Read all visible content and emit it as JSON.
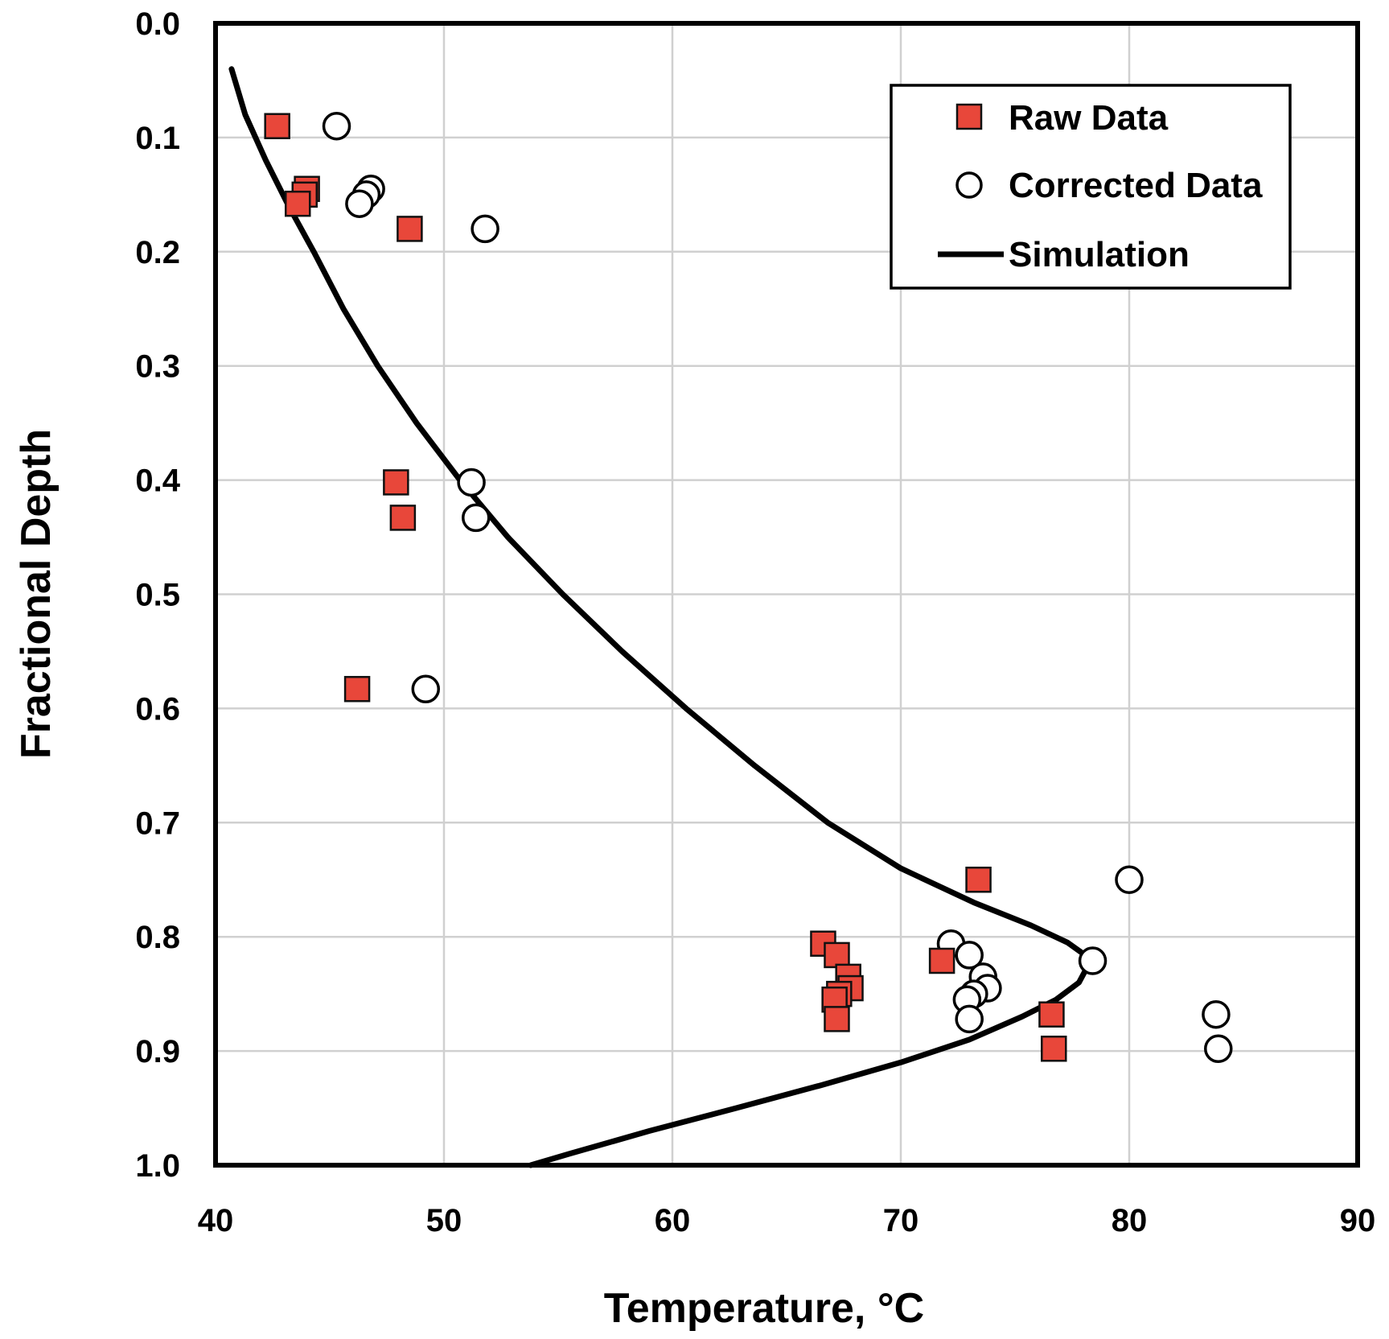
{
  "chart_data": {
    "type": "scatter",
    "title": "",
    "xlabel": "Temperature, °C",
    "ylabel": "Fractional Depth",
    "xlim": [
      40,
      90
    ],
    "ylim": [
      0.0,
      1.0
    ],
    "y_inverted": true,
    "grid": true,
    "legend_position": "top-right",
    "x_ticks": [
      "40",
      "50",
      "60",
      "70",
      "80",
      "90"
    ],
    "x_tick_values": [
      40,
      50,
      60,
      70,
      80,
      90
    ],
    "y_ticks": [
      "0.0",
      "0.1",
      "0.2",
      "0.3",
      "0.4",
      "0.5",
      "0.6",
      "0.7",
      "0.8",
      "0.9",
      "1.0"
    ],
    "y_tick_values": [
      0.0,
      0.1,
      0.2,
      0.3,
      0.4,
      0.5,
      0.6,
      0.7,
      0.8,
      0.9,
      1.0
    ],
    "series": [
      {
        "name": "Raw Data",
        "marker": "square",
        "color": "#e8473a",
        "points": [
          {
            "x": 42.7,
            "y": 0.09
          },
          {
            "x": 44.0,
            "y": 0.145
          },
          {
            "x": 43.9,
            "y": 0.15
          },
          {
            "x": 43.6,
            "y": 0.158
          },
          {
            "x": 48.5,
            "y": 0.18
          },
          {
            "x": 47.9,
            "y": 0.402
          },
          {
            "x": 48.2,
            "y": 0.433
          },
          {
            "x": 46.2,
            "y": 0.583
          },
          {
            "x": 73.4,
            "y": 0.75
          },
          {
            "x": 66.6,
            "y": 0.806
          },
          {
            "x": 67.2,
            "y": 0.816
          },
          {
            "x": 71.8,
            "y": 0.821
          },
          {
            "x": 67.7,
            "y": 0.835
          },
          {
            "x": 67.8,
            "y": 0.845
          },
          {
            "x": 67.3,
            "y": 0.85
          },
          {
            "x": 67.1,
            "y": 0.855
          },
          {
            "x": 67.2,
            "y": 0.872
          },
          {
            "x": 76.6,
            "y": 0.868
          },
          {
            "x": 76.7,
            "y": 0.898
          }
        ]
      },
      {
        "name": "Corrected Data",
        "marker": "circle",
        "color": "#ffffff",
        "points": [
          {
            "x": 45.3,
            "y": 0.09
          },
          {
            "x": 46.8,
            "y": 0.145
          },
          {
            "x": 46.6,
            "y": 0.15
          },
          {
            "x": 46.3,
            "y": 0.158
          },
          {
            "x": 51.8,
            "y": 0.18
          },
          {
            "x": 51.2,
            "y": 0.402
          },
          {
            "x": 51.4,
            "y": 0.433
          },
          {
            "x": 49.2,
            "y": 0.583
          },
          {
            "x": 80.0,
            "y": 0.75
          },
          {
            "x": 72.2,
            "y": 0.806
          },
          {
            "x": 73.0,
            "y": 0.816
          },
          {
            "x": 78.4,
            "y": 0.821
          },
          {
            "x": 73.6,
            "y": 0.835
          },
          {
            "x": 73.8,
            "y": 0.845
          },
          {
            "x": 73.2,
            "y": 0.85
          },
          {
            "x": 72.9,
            "y": 0.855
          },
          {
            "x": 73.0,
            "y": 0.872
          },
          {
            "x": 83.8,
            "y": 0.868
          },
          {
            "x": 83.9,
            "y": 0.898
          }
        ]
      },
      {
        "name": "Simulation",
        "marker": "line",
        "color": "#000000",
        "points": [
          {
            "x": 40.7,
            "y": 0.04
          },
          {
            "x": 41.3,
            "y": 0.08
          },
          {
            "x": 42.2,
            "y": 0.12
          },
          {
            "x": 43.2,
            "y": 0.16
          },
          {
            "x": 44.3,
            "y": 0.2
          },
          {
            "x": 45.6,
            "y": 0.25
          },
          {
            "x": 47.1,
            "y": 0.3
          },
          {
            "x": 48.8,
            "y": 0.35
          },
          {
            "x": 50.7,
            "y": 0.4
          },
          {
            "x": 52.8,
            "y": 0.45
          },
          {
            "x": 55.2,
            "y": 0.5
          },
          {
            "x": 57.8,
            "y": 0.55
          },
          {
            "x": 60.6,
            "y": 0.6
          },
          {
            "x": 63.6,
            "y": 0.65
          },
          {
            "x": 66.8,
            "y": 0.7
          },
          {
            "x": 70.0,
            "y": 0.74
          },
          {
            "x": 73.2,
            "y": 0.77
          },
          {
            "x": 75.7,
            "y": 0.79
          },
          {
            "x": 77.3,
            "y": 0.805
          },
          {
            "x": 78.0,
            "y": 0.815
          },
          {
            "x": 78.2,
            "y": 0.825
          },
          {
            "x": 77.8,
            "y": 0.84
          },
          {
            "x": 76.8,
            "y": 0.855
          },
          {
            "x": 75.3,
            "y": 0.87
          },
          {
            "x": 73.0,
            "y": 0.89
          },
          {
            "x": 70.0,
            "y": 0.91
          },
          {
            "x": 66.5,
            "y": 0.93
          },
          {
            "x": 62.8,
            "y": 0.95
          },
          {
            "x": 59.0,
            "y": 0.97
          },
          {
            "x": 55.5,
            "y": 0.99
          },
          {
            "x": 53.8,
            "y": 1.0
          }
        ]
      }
    ]
  }
}
